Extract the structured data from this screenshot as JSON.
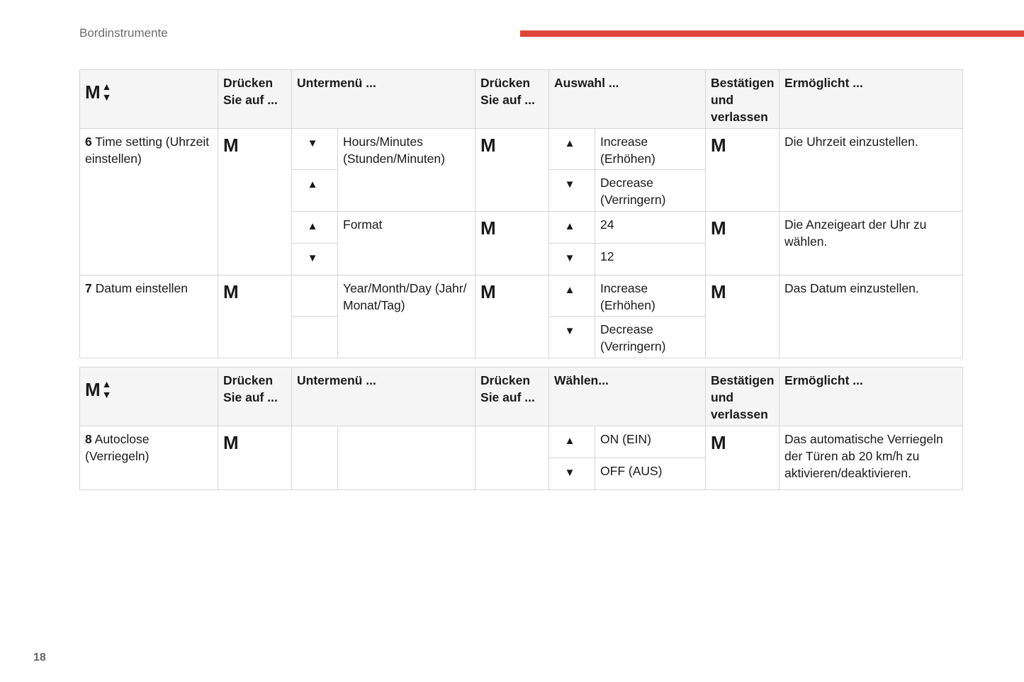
{
  "header": {
    "section_title": "Bordinstrumente",
    "accent_color": "#e0453a"
  },
  "page_number": "18",
  "symbols": {
    "m": "M",
    "up": "▲",
    "down": "▼"
  },
  "table1": {
    "headers": [
      "Drücken Sie auf ...",
      "Untermenü ...",
      "Drücken Sie auf ...",
      "Auswahl ...",
      "Bestätigen und verlassen",
      "Ermöglicht ..."
    ],
    "rows": [
      {
        "num": "6",
        "label": "Time setting (Uhrzeit einstellen)",
        "submenus": [
          {
            "name": "Hours/Minutes (Stunden/Minuten)",
            "arrows": [
              "▼",
              "▲"
            ],
            "options": [
              {
                "arrow": "▲",
                "label": "Increase (Erhöhen)"
              },
              {
                "arrow": "▼",
                "label": "Decrease (Verringern)"
              }
            ],
            "result": "Die Uhrzeit einzustellen."
          },
          {
            "name": "Format",
            "arrows": [
              "▲",
              "▼"
            ],
            "options": [
              {
                "arrow": "▲",
                "label": "24"
              },
              {
                "arrow": "▼",
                "label": "12"
              }
            ],
            "result": "Die Anzeigeart der Uhr zu wählen."
          }
        ]
      },
      {
        "num": "7",
        "label": "Datum einstellen",
        "submenus": [
          {
            "name": "Year/Month/Day (Jahr/ Monat/Tag)",
            "arrows": [
              "",
              ""
            ],
            "options": [
              {
                "arrow": "▲",
                "label": "Increase (Erhöhen)"
              },
              {
                "arrow": "▼",
                "label": "Decrease (Verringern)"
              }
            ],
            "result": "Das Datum einzustellen."
          }
        ]
      }
    ]
  },
  "table2": {
    "headers": [
      "Drücken Sie auf ...",
      "Untermenü ...",
      "Drücken Sie auf ...",
      "Wählen...",
      "Bestätigen und verlassen",
      "Ermöglicht ..."
    ],
    "row": {
      "num": "8",
      "label": "Autoclose (Verriegeln)",
      "options": [
        {
          "arrow": "▲",
          "label": "ON (EIN)"
        },
        {
          "arrow": "▼",
          "label": "OFF (AUS)"
        }
      ],
      "result": "Das automatische Verriegeln der Türen ab 20 km/h zu aktivieren/deaktivieren."
    }
  }
}
